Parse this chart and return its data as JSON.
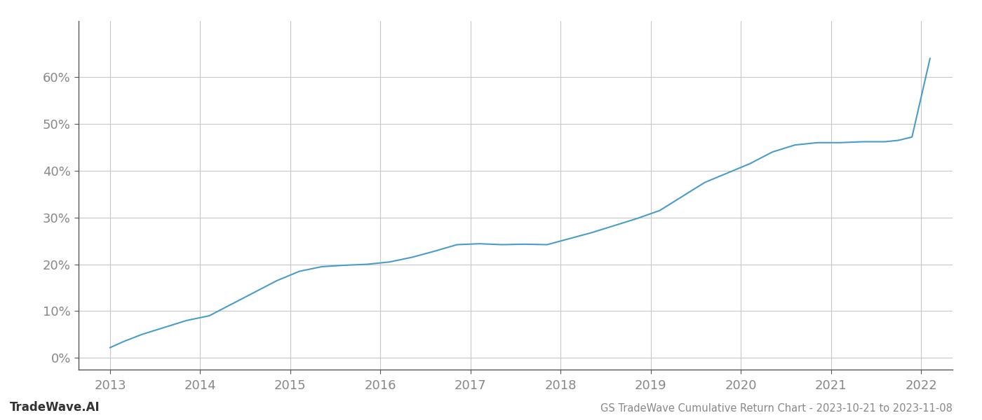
{
  "x_values": [
    2013.0,
    2013.15,
    2013.35,
    2013.6,
    2013.85,
    2014.1,
    2014.35,
    2014.6,
    2014.85,
    2015.1,
    2015.35,
    2015.6,
    2015.85,
    2016.1,
    2016.35,
    2016.6,
    2016.85,
    2017.1,
    2017.35,
    2017.6,
    2017.85,
    2018.1,
    2018.35,
    2018.6,
    2018.85,
    2019.1,
    2019.35,
    2019.6,
    2019.85,
    2020.1,
    2020.35,
    2020.6,
    2020.85,
    2021.1,
    2021.35,
    2021.6,
    2021.75,
    2021.9,
    2022.1
  ],
  "y_values": [
    0.022,
    0.035,
    0.05,
    0.065,
    0.08,
    0.09,
    0.115,
    0.14,
    0.165,
    0.185,
    0.195,
    0.198,
    0.2,
    0.205,
    0.215,
    0.228,
    0.242,
    0.244,
    0.242,
    0.243,
    0.242,
    0.255,
    0.268,
    0.283,
    0.298,
    0.315,
    0.345,
    0.375,
    0.395,
    0.415,
    0.44,
    0.455,
    0.46,
    0.46,
    0.462,
    0.462,
    0.465,
    0.472,
    0.64
  ],
  "line_color": "#4a9cc9",
  "line_width": 1.5,
  "background_color": "#ffffff",
  "grid_color": "#c8c8c8",
  "title": "GS TradeWave Cumulative Return Chart - 2023-10-21 to 2023-11-08",
  "watermark": "TradeWave.AI",
  "xlim": [
    2012.65,
    2022.35
  ],
  "ylim": [
    -0.025,
    0.72
  ],
  "yticks": [
    0.0,
    0.1,
    0.2,
    0.3,
    0.4,
    0.5,
    0.6
  ],
  "xticks": [
    2013,
    2014,
    2015,
    2016,
    2017,
    2018,
    2019,
    2020,
    2021,
    2022
  ],
  "title_fontsize": 10.5,
  "tick_fontsize": 13,
  "watermark_fontsize": 12
}
